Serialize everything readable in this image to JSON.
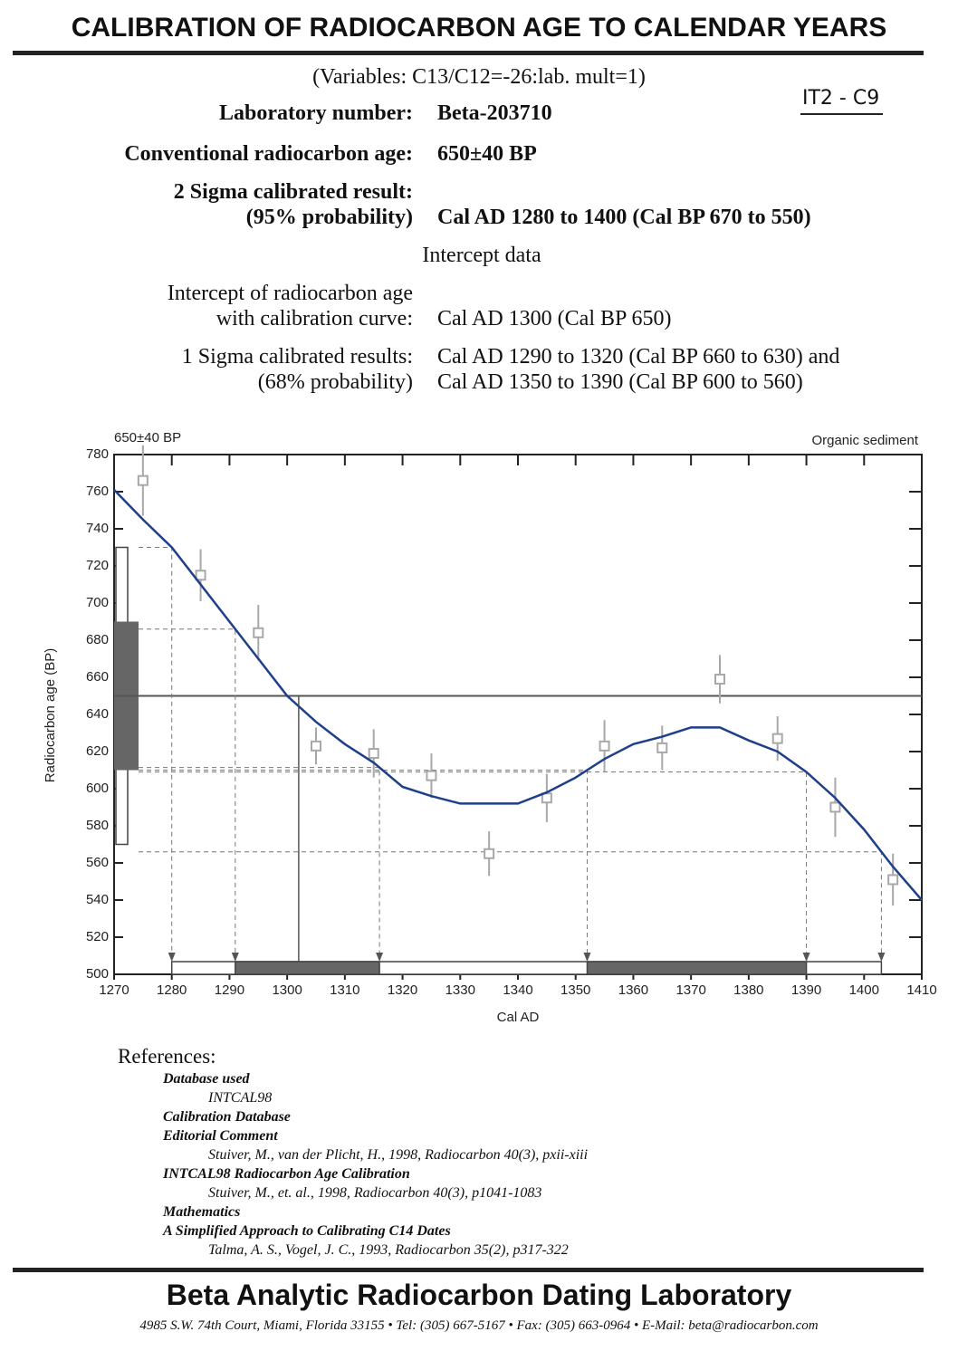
{
  "header": {
    "title": "CALIBRATION OF RADIOCARBON AGE TO CALENDAR YEARS",
    "variables": "(Variables: C13/C12=-26:lab. mult=1)",
    "tag": "IT2 - C9"
  },
  "results": {
    "rows": [
      {
        "label": [
          "Laboratory number:"
        ],
        "value": [
          "Beta-203710"
        ]
      },
      {
        "label": [
          "Conventional radiocarbon age:"
        ],
        "value": [
          "650±40 BP"
        ]
      },
      {
        "label": [
          "2 Sigma calibrated result:",
          "(95% probability)"
        ],
        "value": [
          "Cal AD 1280 to 1400 (Cal BP 670 to 550)"
        ]
      }
    ],
    "intercept_heading": "Intercept data",
    "intercept_rows": [
      {
        "label": [
          "Intercept of radiocarbon age",
          "with calibration curve:"
        ],
        "value": [
          "Cal AD 1300 (Cal BP 650)"
        ]
      },
      {
        "label": [
          "1 Sigma calibrated results:",
          "(68% probability)"
        ],
        "value": [
          "Cal AD 1290 to 1320 (Cal BP 660 to 630) and",
          "Cal AD 1350 to 1390 (Cal BP 600 to 560)"
        ]
      }
    ]
  },
  "chart_data": {
    "type": "line",
    "subtitle": "650±40 BP",
    "annotation": "Organic sediment",
    "x_label": "Cal AD",
    "y_label": "Radiocarbon age (BP)",
    "xlim": [
      1270,
      1410
    ],
    "xticks": [
      1270,
      1280,
      1290,
      1300,
      1310,
      1320,
      1330,
      1340,
      1350,
      1360,
      1370,
      1380,
      1390,
      1400,
      1410
    ],
    "ylim": [
      500,
      780
    ],
    "yticks": [
      500,
      520,
      540,
      560,
      580,
      600,
      620,
      640,
      660,
      680,
      700,
      720,
      740,
      760,
      780
    ],
    "curve": {
      "color": "#1f3f8a",
      "x": [
        1270,
        1275,
        1280,
        1285,
        1290,
        1295,
        1300,
        1305,
        1310,
        1315,
        1320,
        1325,
        1330,
        1335,
        1340,
        1345,
        1350,
        1355,
        1360,
        1365,
        1370,
        1375,
        1380,
        1385,
        1390,
        1395,
        1400,
        1405,
        1410
      ],
      "values": [
        761,
        745,
        730,
        710,
        690,
        670,
        650,
        636,
        624,
        614,
        601,
        596,
        592,
        592,
        592,
        598,
        606,
        616,
        624,
        628,
        633,
        633,
        626,
        620,
        609,
        595,
        578,
        558,
        540
      ]
    },
    "points": {
      "color": "#a8a8a8",
      "x": [
        1275,
        1285,
        1295,
        1305,
        1315,
        1325,
        1335,
        1345,
        1355,
        1365,
        1375,
        1385,
        1395,
        1405
      ],
      "values": [
        766,
        715,
        684,
        623,
        619,
        607,
        565,
        595,
        623,
        622,
        659,
        627,
        590,
        551
      ],
      "errors": [
        19,
        14,
        15,
        10,
        13,
        12,
        12,
        13,
        14,
        12,
        13,
        12,
        16,
        14
      ]
    },
    "sample": {
      "age": 650,
      "one_sigma": [
        610,
        690
      ],
      "two_sigma": [
        570,
        730
      ]
    },
    "cal_ranges": {
      "one_sigma": [
        [
          1291,
          1316
        ],
        [
          1352,
          1390
        ]
      ],
      "two_sigma": [
        [
          1280,
          1403
        ]
      ]
    },
    "intercept": 1302
  },
  "references": {
    "heading": "References:",
    "items": [
      {
        "title": "Database used",
        "entries": [
          "INTCAL98"
        ]
      },
      {
        "title": "Calibration Database"
      },
      {
        "title": "Editorial Comment",
        "entries": [
          "Stuiver, M., van der Plicht, H., 1998, Radiocarbon 40(3), pxii-xiii"
        ]
      },
      {
        "title": "INTCAL98 Radiocarbon Age Calibration",
        "entries": [
          "Stuiver, M., et. al., 1998, Radiocarbon 40(3), p1041-1083"
        ]
      },
      {
        "title": "Mathematics"
      },
      {
        "title": "A Simplified Approach to Calibrating C14 Dates",
        "entries": [
          "Talma, A. S., Vogel, J. C., 1993, Radiocarbon 35(2), p317-322"
        ]
      }
    ]
  },
  "footer": {
    "name": "Beta Analytic Radiocarbon Dating Laboratory",
    "address": "4985 S.W. 74th Court, Miami, Florida 33155 • Tel: (305) 667-5167 • Fax: (305) 663-0964 • E-Mail: beta@radiocarbon.com"
  }
}
